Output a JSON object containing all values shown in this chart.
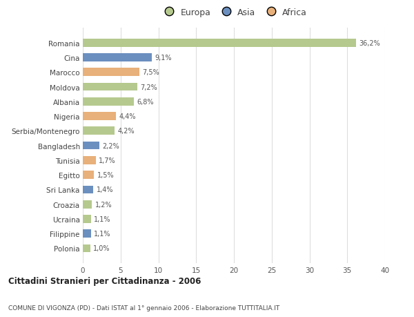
{
  "countries": [
    "Romania",
    "Cina",
    "Marocco",
    "Moldova",
    "Albania",
    "Nigeria",
    "Serbia/Montenegro",
    "Bangladesh",
    "Tunisia",
    "Egitto",
    "Sri Lanka",
    "Croazia",
    "Ucraina",
    "Filippine",
    "Polonia"
  ],
  "values": [
    36.2,
    9.1,
    7.5,
    7.2,
    6.8,
    4.4,
    4.2,
    2.2,
    1.7,
    1.5,
    1.4,
    1.2,
    1.1,
    1.1,
    1.0
  ],
  "labels": [
    "36,2%",
    "9,1%",
    "7,5%",
    "7,2%",
    "6,8%",
    "4,4%",
    "4,2%",
    "2,2%",
    "1,7%",
    "1,5%",
    "1,4%",
    "1,2%",
    "1,1%",
    "1,1%",
    "1,0%"
  ],
  "continents": [
    "Europa",
    "Asia",
    "Africa",
    "Europa",
    "Europa",
    "Africa",
    "Europa",
    "Asia",
    "Africa",
    "Africa",
    "Asia",
    "Europa",
    "Europa",
    "Asia",
    "Europa"
  ],
  "colors": {
    "Europa": "#b5c98e",
    "Asia": "#6b8fbf",
    "Africa": "#e8b07a"
  },
  "title1": "Cittadini Stranieri per Cittadinanza - 2006",
  "title2": "COMUNE DI VIGONZA (PD) - Dati ISTAT al 1° gennaio 2006 - Elaborazione TUTTITALIA.IT",
  "xlim": [
    0,
    40
  ],
  "xticks": [
    0,
    5,
    10,
    15,
    20,
    25,
    30,
    35,
    40
  ],
  "background_color": "#ffffff",
  "grid_color": "#dddddd"
}
